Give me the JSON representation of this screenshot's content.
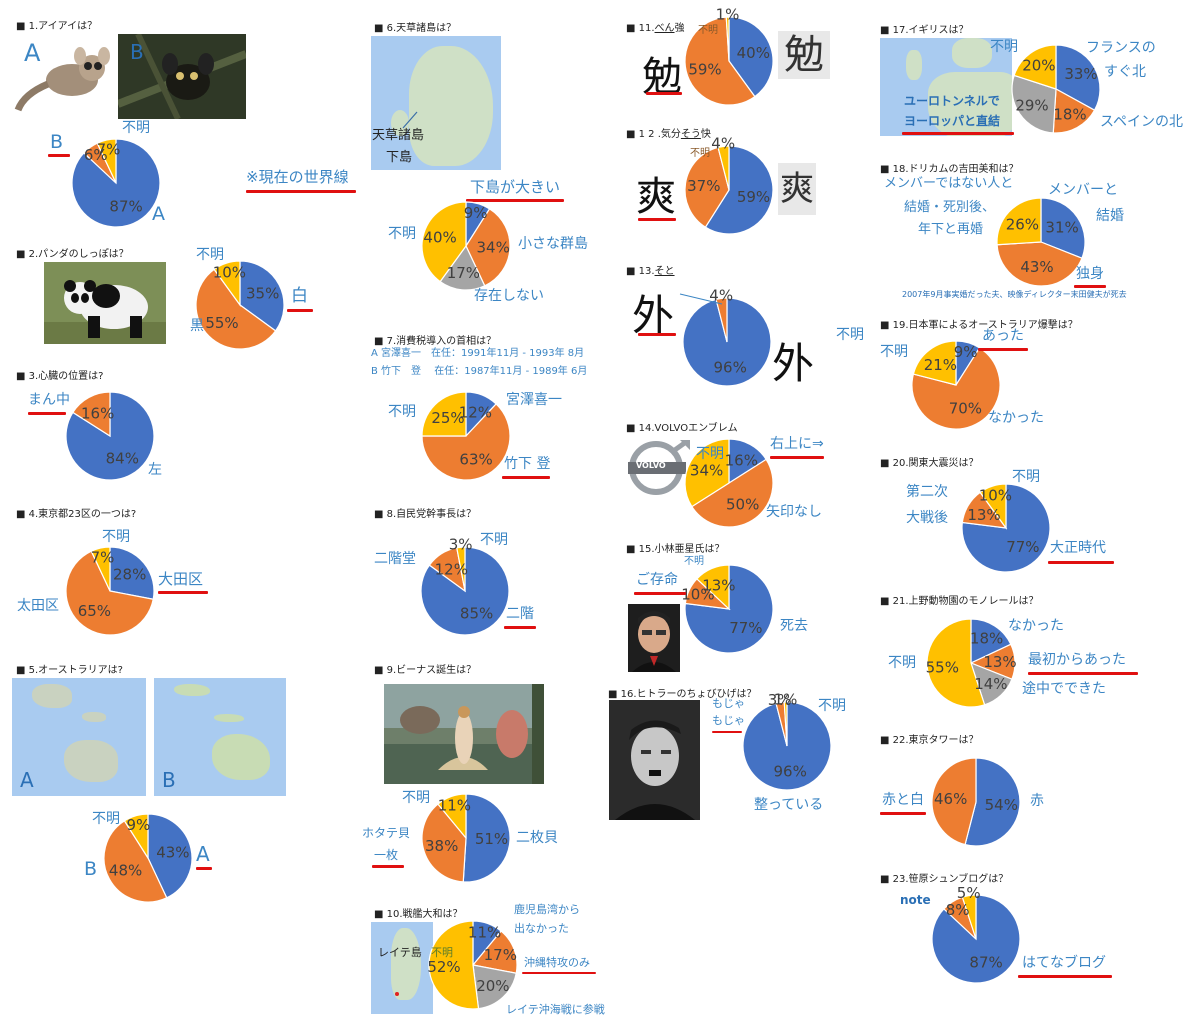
{
  "colors": {
    "blue": "#4472c4",
    "orange": "#ed7d31",
    "gray": "#a5a5a5",
    "yellow": "#ffc000",
    "label_blue": "#3c86c4",
    "underline_red": "#e01010"
  },
  "charts": [
    {
      "id": "q1",
      "title": "■ 1.アイアイは？",
      "slices": [
        {
          "color": "blue",
          "value": 87,
          "text": "87%"
        },
        {
          "color": "orange",
          "value": 6,
          "text": "6%"
        },
        {
          "color": "yellow",
          "value": 7,
          "text": "7%"
        }
      ],
      "labels": {
        "a_top": "A",
        "b_top": "B",
        "b": "B",
        "unknown": "不明",
        "a": "A",
        "note": "※現在の世界線"
      }
    },
    {
      "id": "q2",
      "title": "■ 2.パンダのしっぽは？",
      "slices": [
        {
          "color": "blue",
          "value": 35,
          "text": "35%"
        },
        {
          "color": "orange",
          "value": 55,
          "text": "55%"
        },
        {
          "color": "yellow",
          "value": 10,
          "text": "10%"
        }
      ],
      "labels": {
        "unknown": "不明",
        "white": "白",
        "black": "黒"
      }
    },
    {
      "id": "q3",
      "title": "■ 3.心臓の位置は?",
      "slices": [
        {
          "color": "blue",
          "value": 84,
          "text": "84%"
        },
        {
          "color": "orange",
          "value": 16,
          "text": "16%"
        }
      ],
      "labels": {
        "middle": "まん中",
        "left": "左"
      }
    },
    {
      "id": "q4",
      "title": "■ 4.東京都23区の一つは?",
      "slices": [
        {
          "color": "blue",
          "value": 28,
          "text": "28%"
        },
        {
          "color": "orange",
          "value": 65,
          "text": "65%"
        },
        {
          "color": "yellow",
          "value": 7,
          "text": "7%"
        }
      ],
      "labels": {
        "unknown": "不明",
        "ota1": "大田区",
        "ota2": "太田区"
      }
    },
    {
      "id": "q5",
      "title": "■ 5.オーストラリアは?",
      "slices": [
        {
          "color": "blue",
          "value": 43,
          "text": "43%"
        },
        {
          "color": "orange",
          "value": 48,
          "text": "48%"
        },
        {
          "color": "yellow",
          "value": 9,
          "text": "9%"
        }
      ],
      "labels": {
        "unknown": "不明",
        "a": "A",
        "b": "B",
        "map_a": "A",
        "map_b": "B"
      }
    },
    {
      "id": "q6",
      "title": "■ 6.天草諸島は？",
      "slices": [
        {
          "color": "blue",
          "value": 9,
          "text": "9%"
        },
        {
          "color": "orange",
          "value": 34,
          "text": "34%"
        },
        {
          "color": "gray",
          "value": 17,
          "text": "17%"
        },
        {
          "color": "yellow",
          "value": 40,
          "text": "40%"
        }
      ],
      "labels": {
        "big": "下島が大きい",
        "unknown": "不明",
        "small": "小さな群島",
        "none": "存在しない",
        "map_amakusa": "天草諸島",
        "map_shimo": "下島"
      }
    },
    {
      "id": "q7",
      "title": "■ 7.消費税導入の首相は？",
      "info_a": "A 宮澤喜一　在任：1991年11月 - 1993年 8月",
      "info_b": "B 竹下　登　 在任：1987年11月 - 1989年 6月",
      "slices": [
        {
          "color": "blue",
          "value": 12,
          "text": "12%"
        },
        {
          "color": "orange",
          "value": 63,
          "text": "63%"
        },
        {
          "color": "yellow",
          "value": 25,
          "text": "25%"
        }
      ],
      "labels": {
        "unknown": "不明",
        "miyazawa": "宮澤喜一",
        "takeshita": "竹下 登"
      }
    },
    {
      "id": "q8",
      "title": "■ 8.自民党幹事長は？",
      "slices": [
        {
          "color": "blue",
          "value": 85,
          "text": "85%"
        },
        {
          "color": "orange",
          "value": 12,
          "text": "12%"
        },
        {
          "color": "yellow",
          "value": 3,
          "text": "3%"
        }
      ],
      "labels": {
        "unknown": "不明",
        "nikaido": "二階堂",
        "nikai": "二階"
      }
    },
    {
      "id": "q9",
      "title": "■ 9.ビーナス誕生は？",
      "slices": [
        {
          "color": "blue",
          "value": 51,
          "text": "51%"
        },
        {
          "color": "orange",
          "value": 38,
          "text": "38%"
        },
        {
          "color": "yellow",
          "value": 11,
          "text": "11%"
        }
      ],
      "labels": {
        "unknown": "不明",
        "two": "二枚貝",
        "scallop": "ホタテ貝",
        "one": "一枚"
      }
    },
    {
      "id": "q10",
      "title": "■ 10.戦艦大和は？",
      "slices": [
        {
          "color": "blue",
          "value": 11,
          "text": "11%"
        },
        {
          "color": "orange",
          "value": 17,
          "text": "17%"
        },
        {
          "color": "gray",
          "value": 20,
          "text": "20%"
        },
        {
          "color": "yellow",
          "value": 52,
          "text": "52%"
        }
      ],
      "labels": {
        "unknown": "不明",
        "kagoshima1": "鹿児島湾から",
        "kagoshima2": "出なかった",
        "okinawa": "沖縄特攻のみ",
        "leyte": "レイテ沖海戦に参戦",
        "map_leyte": "レイテ島"
      }
    },
    {
      "id": "q11",
      "title_prefix": "■ 11.",
      "title_underlined": "べん",
      "title_suffix": "強",
      "slices": [
        {
          "color": "blue",
          "value": 40,
          "text": "40%"
        },
        {
          "color": "orange",
          "value": 59,
          "text": "59%"
        },
        {
          "color": "yellow",
          "value": 1,
          "text": "1%"
        }
      ],
      "labels": {
        "unknown": "不明",
        "kanji_a": "勉",
        "kanji_b": "勉"
      }
    },
    {
      "id": "q12",
      "title_prefix": "■ 1 2 .気分",
      "title_underlined": "そう",
      "title_suffix": "快",
      "slices": [
        {
          "color": "blue",
          "value": 59,
          "text": "59%"
        },
        {
          "color": "orange",
          "value": 37,
          "text": "37%"
        },
        {
          "color": "yellow",
          "value": 4,
          "text": "4%"
        }
      ],
      "labels": {
        "unknown": "不明",
        "kanji_a": "爽",
        "kanji_b": "爽"
      }
    },
    {
      "id": "q13",
      "title_prefix": "■ 13.",
      "title_underlined": "そと",
      "title_suffix": "",
      "slices": [
        {
          "color": "blue",
          "value": 96,
          "text": "96%"
        },
        {
          "color": "orange",
          "value": 4,
          "text": "4%"
        }
      ],
      "labels": {
        "unknown": "不明",
        "kanji_a": "外",
        "kanji_b": "外"
      }
    },
    {
      "id": "q14",
      "title": "■ 14.VOLVOエンブレム",
      "slices": [
        {
          "color": "blue",
          "value": 16,
          "text": "16%"
        },
        {
          "color": "orange",
          "value": 50,
          "text": "50%"
        },
        {
          "color": "yellow",
          "value": 34,
          "text": "34%"
        }
      ],
      "labels": {
        "unknown": "不明",
        "upper": "右上に⇒",
        "none": "矢印なし",
        "logo": "VOLVO"
      }
    },
    {
      "id": "q15",
      "title": "■ 15.小林亜星氏は？",
      "slices": [
        {
          "color": "blue",
          "value": 77,
          "text": "77%"
        },
        {
          "color": "orange",
          "value": 10,
          "text": "10%"
        },
        {
          "color": "yellow",
          "value": 13,
          "text": "13%"
        }
      ],
      "labels": {
        "unknown": "不明",
        "alive": "ご存命",
        "dead": "死去"
      }
    },
    {
      "id": "q16",
      "title": "■ 16.ヒトラーのちょびひげは？",
      "slices": [
        {
          "color": "blue",
          "value": 96,
          "text": "96%"
        },
        {
          "color": "orange",
          "value": 3,
          "text": "3%"
        },
        {
          "color": "yellow",
          "value": 1,
          "text": "1%"
        }
      ],
      "labels": {
        "unknown": "不明",
        "moja1": "もじゃ",
        "moja2": "もじゃ",
        "neat": "整っている"
      }
    },
    {
      "id": "q17",
      "title": "■ 17.イギリスは？",
      "slices": [
        {
          "color": "blue",
          "value": 33,
          "text": "33%"
        },
        {
          "color": "orange",
          "value": 18,
          "text": "18%"
        },
        {
          "color": "gray",
          "value": 29,
          "text": "29%"
        },
        {
          "color": "yellow",
          "value": 20,
          "text": "20%"
        }
      ],
      "labels": {
        "unknown": "不明",
        "france1": "フランスの",
        "france2": "すぐ北",
        "spain": "スペインの北",
        "tunnel1": "ユーロトンネルで",
        "tunnel2": "ヨーロッパと直結"
      }
    },
    {
      "id": "q18",
      "title": "■ 18.ドリカムの吉田美和は？",
      "slices": [
        {
          "color": "blue",
          "value": 31,
          "text": "31%"
        },
        {
          "color": "orange",
          "value": 43,
          "text": "43%"
        },
        {
          "color": "yellow",
          "value": 26,
          "text": "26%"
        }
      ],
      "labels": {
        "notmember1": "メンバーではない人と",
        "notmember2": "結婚・死別後、",
        "notmember3": "年下と再婚",
        "member1": "メンバーと",
        "member2": "結婚",
        "single": "独身",
        "note": "2007年9月事実婚だった夫、映像ディレクター末田健夫が死去"
      }
    },
    {
      "id": "q19",
      "title": "■ 19.日本軍によるオーストラリア爆撃は？",
      "slices": [
        {
          "color": "blue",
          "value": 9,
          "text": "9%"
        },
        {
          "color": "orange",
          "value": 70,
          "text": "70%"
        },
        {
          "color": "yellow",
          "value": 21,
          "text": "21%"
        }
      ],
      "labels": {
        "unknown": "不明",
        "yes": "あった",
        "no": "なかった"
      }
    },
    {
      "id": "q20",
      "title": "■ 20.関東大震災は？",
      "slices": [
        {
          "color": "blue",
          "value": 77,
          "text": "77%"
        },
        {
          "color": "orange",
          "value": 13,
          "text": "13%"
        },
        {
          "color": "yellow",
          "value": 10,
          "text": "10%"
        }
      ],
      "labels": {
        "unknown": "不明",
        "ww2a": "第二次",
        "ww2b": "大戦後",
        "taisho": "大正時代"
      }
    },
    {
      "id": "q21",
      "title": "■ 21.上野動物園のモノレールは？",
      "slices": [
        {
          "color": "blue",
          "value": 18,
          "text": "18%"
        },
        {
          "color": "orange",
          "value": 13,
          "text": "13%"
        },
        {
          "color": "gray",
          "value": 14,
          "text": "14%"
        },
        {
          "color": "yellow",
          "value": 55,
          "text": "55%"
        }
      ],
      "labels": {
        "unknown": "不明",
        "no": "なかった",
        "first": "最初からあった",
        "mid": "途中でできた"
      }
    },
    {
      "id": "q22",
      "title": "■ 22.東京タワーは？",
      "slices": [
        {
          "color": "blue",
          "value": 54,
          "text": "54%"
        },
        {
          "color": "orange",
          "value": 46,
          "text": "46%"
        }
      ],
      "labels": {
        "redwhite": "赤と白",
        "red": "赤"
      }
    },
    {
      "id": "q23",
      "title": "■ 23.笹原シュンブログは？",
      "slices": [
        {
          "color": "blue",
          "value": 87,
          "text": "87%"
        },
        {
          "color": "orange",
          "value": 8,
          "text": "8%"
        },
        {
          "color": "yellow",
          "value": 5,
          "text": "5%"
        }
      ],
      "labels": {
        "note": "note",
        "hatena": "はてなブログ"
      }
    }
  ]
}
